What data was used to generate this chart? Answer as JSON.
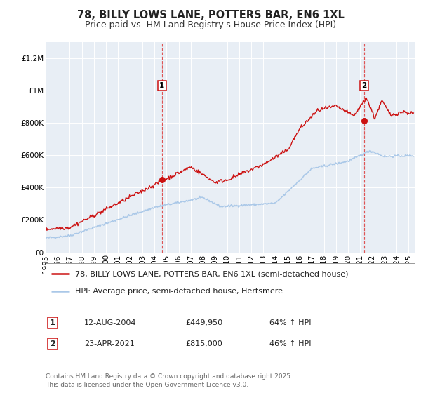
{
  "title": "78, BILLY LOWS LANE, POTTERS BAR, EN6 1XL",
  "subtitle": "Price paid vs. HM Land Registry's House Price Index (HPI)",
  "ylim": [
    0,
    1300000
  ],
  "xlim_start": 1995.0,
  "xlim_end": 2025.5,
  "yticks": [
    0,
    200000,
    400000,
    600000,
    800000,
    1000000,
    1200000
  ],
  "ytick_labels": [
    "£0",
    "£200K",
    "£400K",
    "£600K",
    "£800K",
    "£1M",
    "£1.2M"
  ],
  "xticks": [
    1995,
    1996,
    1997,
    1998,
    1999,
    2000,
    2001,
    2002,
    2003,
    2004,
    2005,
    2006,
    2007,
    2008,
    2009,
    2010,
    2011,
    2012,
    2013,
    2014,
    2015,
    2016,
    2017,
    2018,
    2019,
    2020,
    2021,
    2022,
    2023,
    2024,
    2025
  ],
  "hpi_color": "#aac8e8",
  "price_color": "#cc1111",
  "vline_color": "#dd4444",
  "bg_color": "#e8eef5",
  "marker1_x": 2004.617,
  "marker1_y": 449950,
  "marker2_x": 2021.31,
  "marker2_y": 815000,
  "legend1_text": "78, BILLY LOWS LANE, POTTERS BAR, EN6 1XL (semi-detached house)",
  "legend2_text": "HPI: Average price, semi-detached house, Hertsmere",
  "annotation1_num": "1",
  "annotation1_date": "12-AUG-2004",
  "annotation1_price": "£449,950",
  "annotation1_hpi": "64% ↑ HPI",
  "annotation2_num": "2",
  "annotation2_date": "23-APR-2021",
  "annotation2_price": "£815,000",
  "annotation2_hpi": "46% ↑ HPI",
  "footer": "Contains HM Land Registry data © Crown copyright and database right 2025.\nThis data is licensed under the Open Government Licence v3.0.",
  "title_fontsize": 10.5,
  "subtitle_fontsize": 9,
  "tick_fontsize": 7.5,
  "legend_fontsize": 8,
  "annotation_fontsize": 8,
  "footer_fontsize": 6.5
}
